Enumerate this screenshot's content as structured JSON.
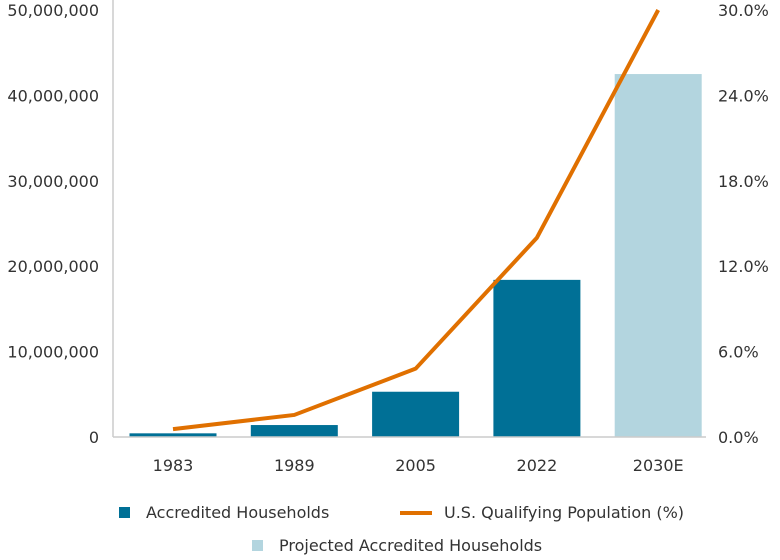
{
  "chart_data": {
    "type": "bar+line",
    "categories": [
      "1983",
      "1989",
      "2005",
      "2022",
      "2030E"
    ],
    "series": [
      {
        "name": "Accredited Households",
        "type": "bar",
        "axis": "left",
        "color": "#007096",
        "values": [
          430000,
          1400000,
          5300000,
          18400000,
          null
        ]
      },
      {
        "name": "Projected Accredited Households",
        "type": "bar",
        "axis": "left",
        "color": "#b3d5df",
        "values": [
          null,
          null,
          null,
          null,
          42500000
        ]
      },
      {
        "name": "U.S. Qualifying Population (%)",
        "type": "line",
        "axis": "right",
        "color": "#e07000",
        "values": [
          0.55,
          1.55,
          4.8,
          14.0,
          30.0
        ]
      }
    ],
    "left_axis": {
      "ylim": [
        0,
        50000000
      ],
      "ticks": [
        "0",
        "10,000,000",
        "20,000,000",
        "30,000,000",
        "40,000,000",
        "50,000,000"
      ]
    },
    "right_axis": {
      "ylim": [
        0,
        30
      ],
      "ticks": [
        "0.0%",
        "6.0%",
        "12.0%",
        "18.0%",
        "24.0%",
        "30.0%"
      ]
    },
    "grid": false,
    "legend_placement": "bottom"
  }
}
